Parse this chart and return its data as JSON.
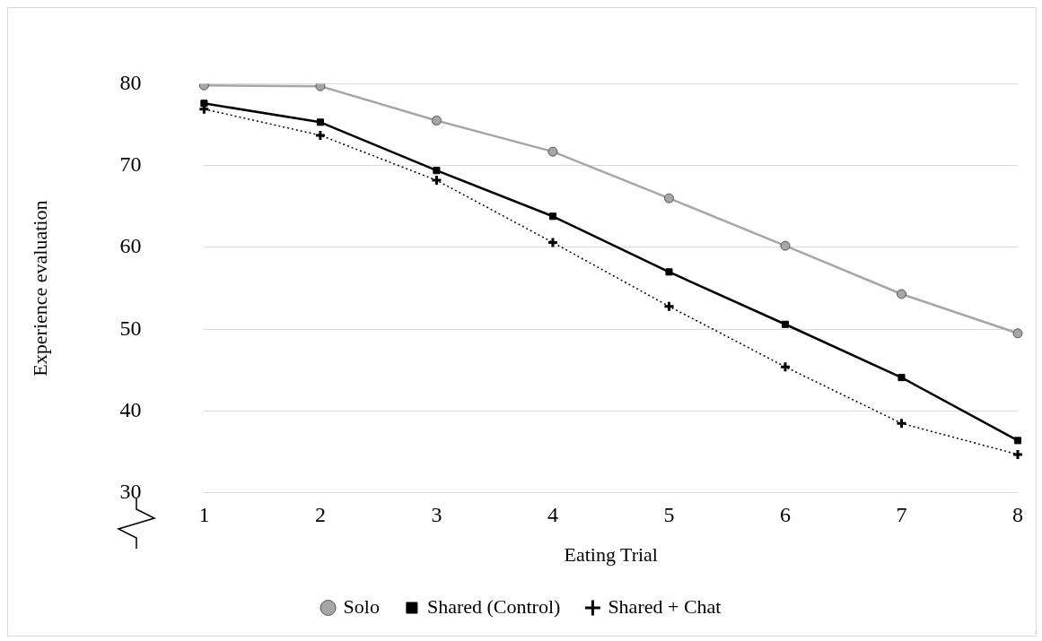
{
  "chart_data": {
    "type": "line",
    "xlabel": "Eating Trial",
    "ylabel": "Experience evaluation",
    "categories": [
      "1",
      "2",
      "3",
      "4",
      "5",
      "6",
      "7",
      "8"
    ],
    "series": [
      {
        "name": "Solo",
        "color": "#a6a6a6",
        "marker": "circle",
        "line_style": "solid",
        "values": [
          79.8,
          79.7,
          75.5,
          71.7,
          66.0,
          60.2,
          54.3,
          49.5
        ]
      },
      {
        "name": "Shared (Control)",
        "color": "#000000",
        "marker": "square",
        "line_style": "solid",
        "values": [
          77.6,
          75.3,
          69.4,
          63.8,
          57.0,
          50.6,
          44.1,
          36.4
        ]
      },
      {
        "name": "Shared + Chat",
        "color": "#000000",
        "marker": "cross",
        "line_style": "dotted",
        "values": [
          76.9,
          73.7,
          68.2,
          60.6,
          52.8,
          45.4,
          38.5,
          34.7
        ]
      }
    ],
    "ylim": [
      30,
      80
    ],
    "yticks": [
      30,
      40,
      50,
      60,
      70,
      80
    ],
    "grid": "y",
    "legend": "bottom"
  }
}
